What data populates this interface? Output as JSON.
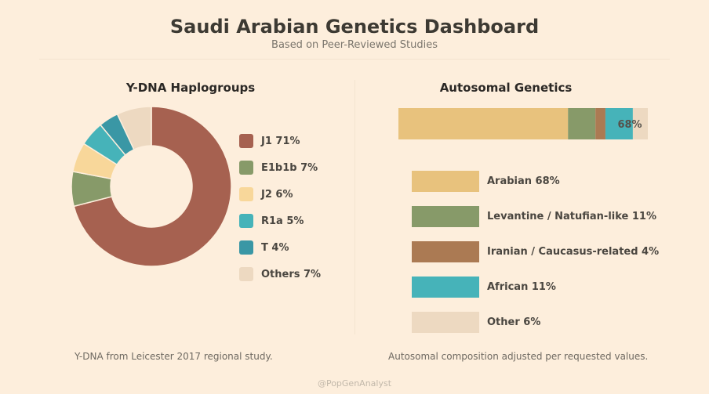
{
  "header": {
    "title": "Saudi Arabian Genetics Dashboard",
    "subtitle": "Based on Peer-Reviewed Studies"
  },
  "chart_data": [
    {
      "type": "pie",
      "title": "Y-DNA Haplogroups",
      "donut": true,
      "categories": [
        "J1",
        "E1b1b",
        "J2",
        "R1a",
        "T",
        "Others"
      ],
      "values": [
        71,
        7,
        6,
        5,
        4,
        7
      ],
      "colors": [
        "#a66150",
        "#879a69",
        "#f8d79a",
        "#46b3b9",
        "#3a97a5",
        "#edd9c1"
      ],
      "legend_labels": [
        "J1 71%",
        "E1b1b 7%",
        "J2 6%",
        "R1a 5%",
        "T 4%",
        "Others 7%"
      ],
      "legend": "right"
    },
    {
      "type": "bar",
      "orientation": "horizontal-stacked",
      "title": "Autosomal Genetics",
      "categories": [
        "Arabian",
        "Levantine / Natufian-like",
        "Iranian / Caucasus-related",
        "African",
        "Other"
      ],
      "values": [
        68,
        11,
        4,
        11,
        6
      ],
      "colors": [
        "#e8c27d",
        "#879a69",
        "#ab7a53",
        "#46b3b9",
        "#edd9c1"
      ],
      "legend_labels": [
        "Arabian 68%",
        "Levantine / Natufian-like 11%",
        "Iranian / Caucasus-related 4%",
        "African 11%",
        "Other 6%"
      ],
      "annotation": "68%",
      "legend": "below"
    }
  ],
  "footnotes": {
    "left": "Y-DNA from Leicester 2017 regional study.",
    "right": "Autosomal composition adjusted per requested values."
  },
  "credit": "@PopGenAnalyst"
}
